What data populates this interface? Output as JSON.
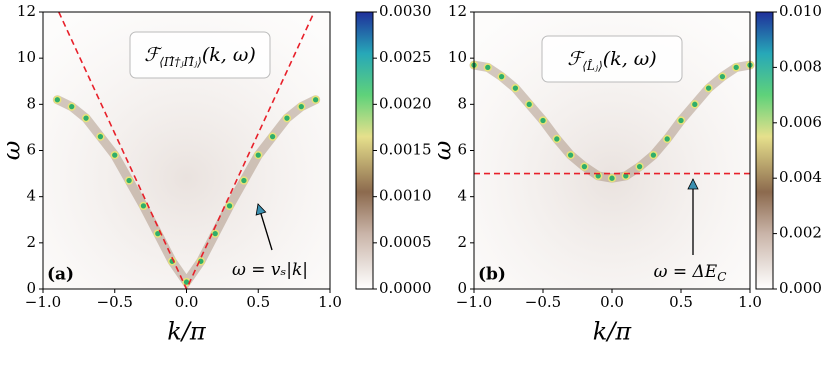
{
  "chart_data": [
    {
      "type": "heatmap-line",
      "panel_label": "(a)",
      "x_label": "k/π",
      "y_label": "ω",
      "formula": {
        "text": "ℱ",
        "sub": "⟨Π̂†ⱼΠ̂ⱼ⟩",
        "tail": "(k, ω)"
      },
      "annotation": {
        "text": "ω = vₛ|k|",
        "sub": ""
      },
      "xlim": [
        -1,
        1
      ],
      "ylim": [
        0,
        12
      ],
      "xticks": [
        {
          "value": -1,
          "label": "−1.0"
        },
        {
          "value": -0.5,
          "label": "−0.5"
        },
        {
          "value": 0,
          "label": "0.0"
        },
        {
          "value": 0.5,
          "label": "0.5"
        },
        {
          "value": 1,
          "label": "1.0"
        }
      ],
      "yticks": [
        0,
        2,
        4,
        6,
        8,
        10,
        12
      ],
      "clim": [
        0,
        0.003
      ],
      "cticks": [
        {
          "value": 0,
          "label": "0.0000"
        },
        {
          "value": 0.0005,
          "label": "0.0005"
        },
        {
          "value": 0.001,
          "label": "0.0010"
        },
        {
          "value": 0.0015,
          "label": "0.0015"
        },
        {
          "value": 0.002,
          "label": "0.0020"
        },
        {
          "value": 0.0025,
          "label": "0.0025"
        },
        {
          "value": 0.003,
          "label": "0.0030"
        }
      ],
      "series": [
        {
          "style": "dots",
          "color": "#2fae6a",
          "x": [
            -0.9,
            -0.8,
            -0.7,
            -0.6,
            -0.5,
            -0.4,
            -0.3,
            -0.2,
            -0.1,
            0,
            0.1,
            0.2,
            0.3,
            0.4,
            0.5,
            0.6,
            0.7,
            0.8,
            0.9
          ],
          "values": [
            8.2,
            7.9,
            7.4,
            6.6,
            5.8,
            4.7,
            3.6,
            2.4,
            1.2,
            0.3,
            1.2,
            2.4,
            3.6,
            4.7,
            5.8,
            6.6,
            7.4,
            7.9,
            8.2
          ]
        },
        {
          "style": "dashed",
          "color": "#e8202a",
          "x": [
            -0.89,
            0,
            0.89
          ],
          "values": [
            12,
            0,
            12
          ]
        }
      ]
    },
    {
      "type": "heatmap-line",
      "panel_label": "(b)",
      "x_label": "k/π",
      "y_label": "ω",
      "formula": {
        "text": "ℱ",
        "sub": "⟨L̂ⱼ⟩",
        "tail": "(k, ω)"
      },
      "annotation": {
        "text": "ω = ΔE",
        "sub": "C"
      },
      "xlim": [
        -1,
        1
      ],
      "ylim": [
        0,
        12
      ],
      "xticks": [
        {
          "value": -1,
          "label": "−1.0"
        },
        {
          "value": -0.5,
          "label": "−0.5"
        },
        {
          "value": 0,
          "label": "0.0"
        },
        {
          "value": 0.5,
          "label": "0.5"
        },
        {
          "value": 1,
          "label": "1.0"
        }
      ],
      "yticks": [
        0,
        2,
        4,
        6,
        8,
        10,
        12
      ],
      "clim": [
        0,
        0.01
      ],
      "cticks": [
        {
          "value": 0,
          "label": "0.000"
        },
        {
          "value": 0.002,
          "label": "0.002"
        },
        {
          "value": 0.004,
          "label": "0.004"
        },
        {
          "value": 0.006,
          "label": "0.006"
        },
        {
          "value": 0.008,
          "label": "0.008"
        },
        {
          "value": 0.01,
          "label": "0.010"
        }
      ],
      "series": [
        {
          "style": "dots",
          "color": "#2fae6a",
          "x": [
            -1,
            -0.9,
            -0.8,
            -0.7,
            -0.6,
            -0.5,
            -0.4,
            -0.3,
            -0.2,
            -0.1,
            0,
            0.1,
            0.2,
            0.3,
            0.4,
            0.5,
            0.6,
            0.7,
            0.8,
            0.9,
            1
          ],
          "values": [
            9.7,
            9.6,
            9.2,
            8.7,
            8.0,
            7.3,
            6.5,
            5.8,
            5.3,
            4.9,
            4.8,
            4.9,
            5.3,
            5.8,
            6.5,
            7.3,
            8.0,
            8.7,
            9.2,
            9.6,
            9.7
          ]
        },
        {
          "style": "dashed",
          "color": "#e8202a",
          "x": [
            -1,
            1
          ],
          "values": [
            5,
            5
          ]
        }
      ]
    }
  ]
}
